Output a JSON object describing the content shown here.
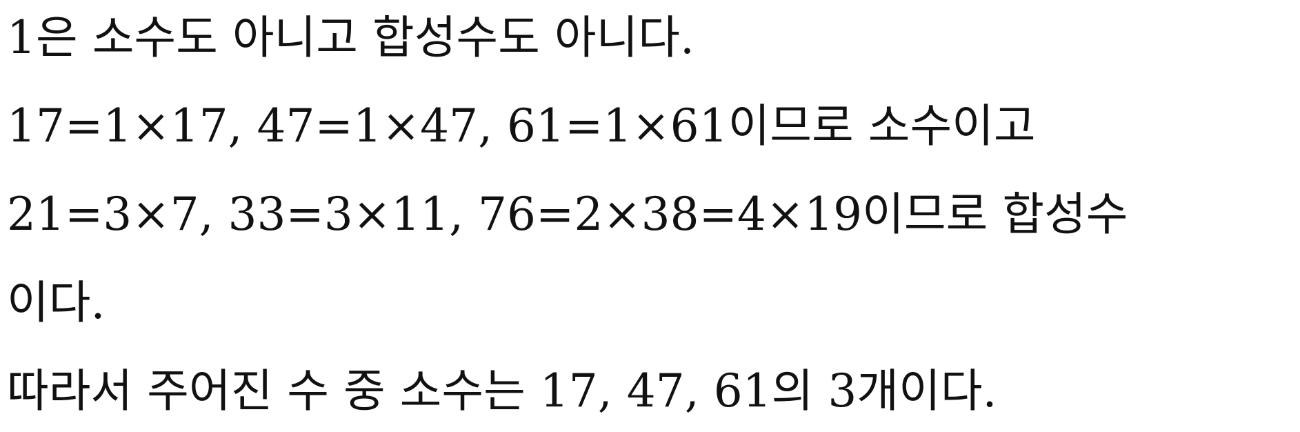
{
  "document": {
    "lines": [
      "1은 소수도 아니고 합성수도 아니다.",
      "17=1×17, 47=1×47, 61=1×61이므로 소수이고",
      "21=3×7, 33=3×11, 76=2×38=4×19이므로 합성수",
      "이다.",
      "따라서 주어진 수 중 소수는 17, 47, 61의 3개이다."
    ]
  }
}
